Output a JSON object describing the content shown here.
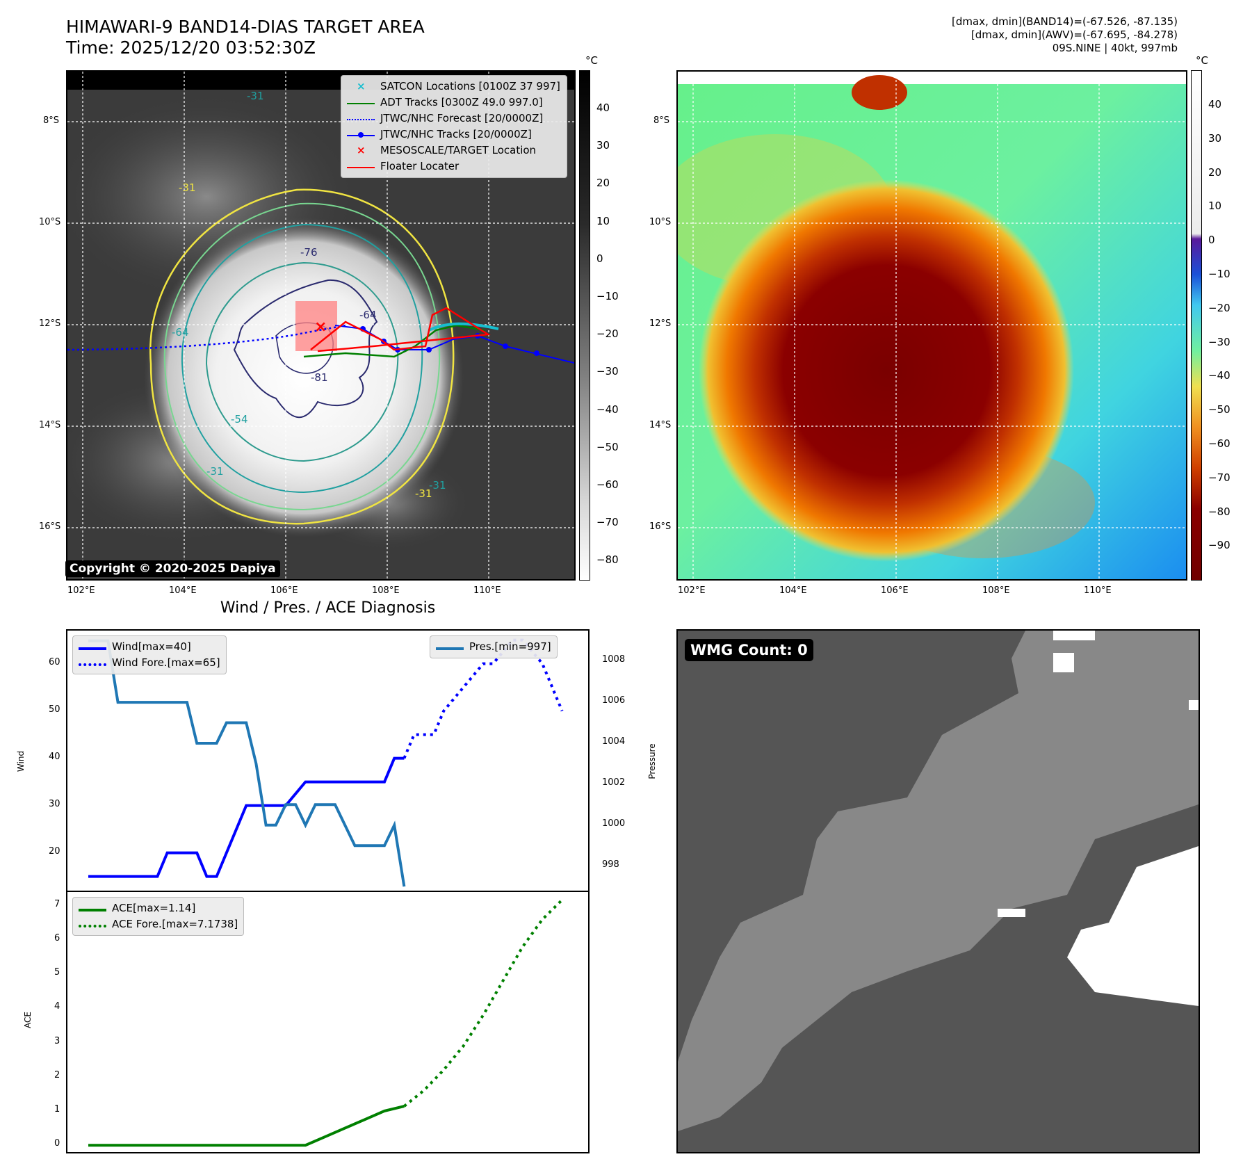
{
  "header": {
    "title_line1": "HIMAWARI-9 BAND14-DIAS TARGET AREA",
    "title_line2": "Time: 2025/12/20 03:52:30Z",
    "info_line1": "[dmax, dmin](BAND14)=(-67.526, -87.135)",
    "info_line2": "[dmax, dmin](AWV)=(-67.695, -84.278)",
    "info_line3": "09S.NINE | 40kt, 997mb"
  },
  "map": {
    "lat_labels": [
      "8°S",
      "10°S",
      "12°S",
      "14°S",
      "16°S"
    ],
    "lon_labels": [
      "102°E",
      "104°E",
      "106°E",
      "108°E",
      "110°E"
    ],
    "contour_labels": [
      "-31",
      "-31",
      "-31",
      "-31",
      "-64",
      "-76",
      "-81",
      "-54",
      "-64",
      "-31"
    ],
    "copyright": "Copyright © 2020-2025 Dapiya",
    "legend": [
      {
        "label": "SATCON Locations [0100Z 37 997]",
        "color": "#17becf",
        "marker": "x"
      },
      {
        "label": "ADT Tracks [0300Z 49.0 997.0]",
        "color": "#008000",
        "marker": "line"
      },
      {
        "label": "JTWC/NHC Forecast [20/0000Z]",
        "color": "#0000ff",
        "marker": "dotted"
      },
      {
        "label": "JTWC/NHC Tracks [20/0000Z]",
        "color": "#0000ff",
        "marker": "line-dot"
      },
      {
        "label": "MESOSCALE/TARGET Location",
        "color": "#ff0000",
        "marker": "x"
      },
      {
        "label": "Floater Locater",
        "color": "#ff0000",
        "marker": "line"
      }
    ]
  },
  "colorbar_left": {
    "unit": "°C",
    "ticks": [
      "40",
      "30",
      "20",
      "10",
      "0",
      "−10",
      "−20",
      "−30",
      "−40",
      "−50",
      "−60",
      "−70",
      "−80"
    ]
  },
  "colorbar_right": {
    "unit": "°C",
    "ticks": [
      "40",
      "30",
      "20",
      "10",
      "0",
      "−10",
      "−20",
      "−30",
      "−40",
      "−50",
      "−60",
      "−70",
      "−80",
      "−90"
    ]
  },
  "diagnosis": {
    "title": "Wind / Pres. / ACE Diagnosis",
    "wind_ylabel": "Wind",
    "pressure_ylabel": "Pressure",
    "ace_ylabel": "ACE",
    "wind_ticks": [
      "60",
      "50",
      "40",
      "30",
      "20"
    ],
    "pressure_ticks": [
      "1008",
      "1006",
      "1004",
      "1002",
      "1000",
      "998"
    ],
    "ace_ticks": [
      "7",
      "6",
      "5",
      "4",
      "3",
      "2",
      "1",
      "0"
    ],
    "legend_wind": "Wind[max=40]",
    "legend_wind_fore": "Wind Fore.[max=65]",
    "legend_pres": "Pres.[min=997]",
    "legend_ace": "ACE[max=1.14]",
    "legend_ace_fore": "ACE Fore.[max=7.1738]"
  },
  "wmg": {
    "label": "WMG Count: 0"
  },
  "chart_data": [
    {
      "type": "line",
      "title": "Wind / Pres. / ACE Diagnosis",
      "ylabel": "Wind",
      "ylim": [
        12,
        67
      ],
      "x": [
        0,
        1,
        2,
        3,
        4,
        5,
        6,
        7,
        8,
        9,
        10,
        11,
        12,
        13,
        14,
        15,
        16,
        17,
        18,
        19,
        20,
        21,
        22,
        23,
        24,
        25,
        26,
        27,
        28,
        29,
        30,
        31,
        32,
        33,
        34,
        35,
        36,
        37,
        38,
        39,
        40,
        41,
        42,
        43,
        44,
        45,
        46,
        47,
        48,
        49
      ],
      "series": [
        {
          "name": "Wind[max=40]",
          "color": "#0000ff",
          "style": "solid",
          "x": [
            0,
            7,
            8,
            11,
            12,
            13,
            16,
            17,
            18,
            20,
            22,
            23,
            26,
            27,
            30,
            31,
            32
          ],
          "values": [
            15,
            15,
            20,
            20,
            15,
            15,
            30,
            30,
            30,
            30,
            35,
            35,
            35,
            35,
            35,
            40,
            40
          ]
        },
        {
          "name": "Wind Fore.[max=65]",
          "color": "#0000ff",
          "style": "dotted",
          "x": [
            32,
            33,
            35,
            36,
            38,
            40,
            41,
            43,
            44,
            46,
            47,
            48
          ],
          "values": [
            40,
            45,
            45,
            50,
            55,
            60,
            60,
            65,
            65,
            60,
            55,
            50
          ]
        },
        {
          "name": "Pres.[min=997]",
          "color": "#1f77b4",
          "style": "solid",
          "axis": "right",
          "ylim": [
            996.8,
            1009.5
          ],
          "x": [
            0,
            2,
            3,
            5,
            10,
            11,
            13,
            14,
            16,
            17,
            18,
            19,
            20,
            21,
            22,
            23,
            24,
            25,
            26,
            27,
            29,
            30,
            31,
            32
          ],
          "values": [
            1009,
            1009,
            1006,
            1006,
            1006,
            1004,
            1004,
            1005,
            1005,
            1003,
            1000,
            1000,
            1001,
            1001,
            1000,
            1001,
            1001,
            1001,
            1000,
            999,
            999,
            999,
            1000,
            997
          ]
        }
      ]
    },
    {
      "type": "line",
      "ylabel": "ACE",
      "ylim": [
        -0.2,
        7.4
      ],
      "series": [
        {
          "name": "ACE[max=1.14]",
          "color": "#008000",
          "style": "solid",
          "x": [
            0,
            5,
            10,
            15,
            18,
            20,
            22,
            24,
            26,
            28,
            30,
            32
          ],
          "values": [
            0,
            0,
            0,
            0,
            0,
            0,
            0,
            0.25,
            0.5,
            0.75,
            1.0,
            1.14
          ]
        },
        {
          "name": "ACE Fore.[max=7.1738]",
          "color": "#008000",
          "style": "dotted",
          "x": [
            32,
            34,
            36,
            38,
            40,
            42,
            44,
            46,
            48
          ],
          "values": [
            1.14,
            1.6,
            2.2,
            2.9,
            3.8,
            4.8,
            5.8,
            6.6,
            7.17
          ]
        }
      ]
    }
  ]
}
